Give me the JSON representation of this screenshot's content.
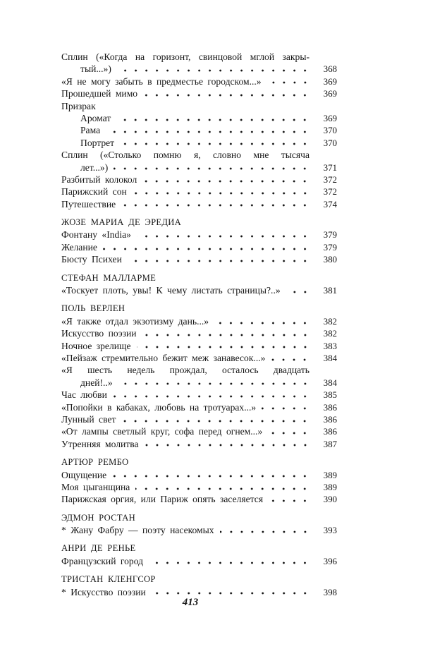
{
  "sections": [
    {
      "heading": "",
      "items": [
        {
          "title": "Сплин («Когда на горизонт, свинцовой мглой закры-",
          "cont": "тый...»)",
          "page": "368"
        },
        {
          "title": "«Я не могу забыть в предместье городском...»",
          "page": "369"
        },
        {
          "title": "Прошедшей мимо",
          "page": "369"
        },
        {
          "title": "Призрак",
          "page": ""
        },
        {
          "title": "Аромат",
          "page": "369",
          "indent": true
        },
        {
          "title": "Рама",
          "page": "370",
          "indent": true
        },
        {
          "title": "Портрет",
          "page": "370",
          "indent": true
        },
        {
          "title": "Сплин («Столько помню я, словно мне тысяча",
          "cont": "лет...»)",
          "page": "371"
        },
        {
          "title": "Разбитый колокол",
          "page": "372"
        },
        {
          "title": "Парижский сон",
          "page": "372"
        },
        {
          "title": "Путешествие",
          "page": "374"
        }
      ]
    },
    {
      "heading": "ЖОЗЕ МАРИА ДЕ ЭРЕДИА",
      "items": [
        {
          "title": "Фонтану «India»",
          "page": "379"
        },
        {
          "title": "Желание",
          "page": "379"
        },
        {
          "title": "Бюсту Психеи",
          "page": "380"
        }
      ]
    },
    {
      "heading": "СТЕФАН МАЛЛАРМЕ",
      "items": [
        {
          "title": "«Тоскует плоть, увы! К чему листать страницы?..»",
          "page": "381"
        }
      ]
    },
    {
      "heading": "ПОЛЬ ВЕРЛЕН",
      "items": [
        {
          "title": "«Я также отдал экзотизму дань...»",
          "page": "382"
        },
        {
          "title": "Искусство поэзии",
          "page": "382"
        },
        {
          "title": "Ночное зрелище",
          "page": "383"
        },
        {
          "title": "«Пейзаж стремительно бежит меж занавесок...»",
          "page": "384"
        },
        {
          "title": "«Я шесть недель прождал, осталось двадцать",
          "cont": "дней!..»",
          "page": "384"
        },
        {
          "title": "Час любви",
          "page": "385"
        },
        {
          "title": "«Попойки в кабаках, любовь на тротуарах...»",
          "page": "386"
        },
        {
          "title": "Лунный свет",
          "page": "386"
        },
        {
          "title": "«От лампы светлый круг, софа перед огнем...»",
          "page": "386"
        },
        {
          "title": "Утренняя молитва",
          "page": "387"
        }
      ]
    },
    {
      "heading": "АРТЮР РЕМБО",
      "items": [
        {
          "title": "Ощущение",
          "page": "389"
        },
        {
          "title": "Моя цыганщина",
          "page": "389"
        },
        {
          "title": "Парижская оргия, или Париж опять заселяется",
          "page": "390"
        }
      ]
    },
    {
      "heading": "ЭДМОН РОСТАН",
      "items": [
        {
          "title": "* Жану Фабру — поэту насекомых",
          "page": "393"
        }
      ]
    },
    {
      "heading": "АНРИ ДЕ РЕНЬЕ",
      "items": [
        {
          "title": "Французский город",
          "page": "396"
        }
      ]
    },
    {
      "heading": "ТРИСТАН КЛЕНГСОР",
      "items": [
        {
          "title": "* Искусство поэзии",
          "page": "398"
        }
      ]
    }
  ],
  "folio": "413"
}
